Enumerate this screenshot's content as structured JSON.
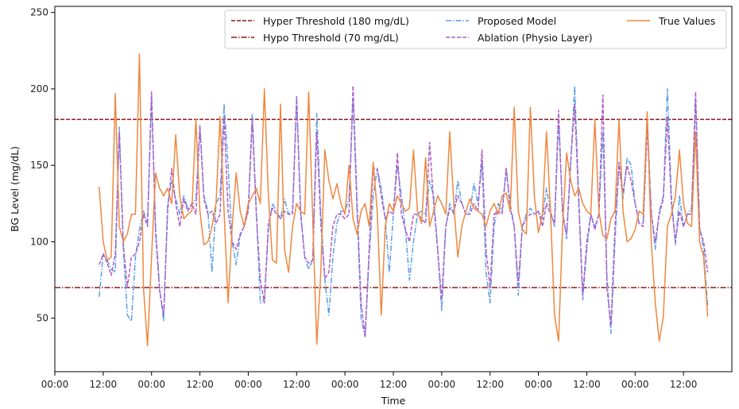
{
  "chart_data": {
    "type": "line",
    "title": "",
    "xlabel": "Time",
    "ylabel": "BG Level (mg/dL)",
    "ylim": [
      15,
      254
    ],
    "yticks": [
      50,
      100,
      150,
      200,
      250
    ],
    "xticks": [
      "00:00",
      "12:00",
      "00:00",
      "12:00",
      "00:00",
      "12:00",
      "00:00",
      "12:00",
      "00:00",
      "12:00",
      "00:00",
      "12:00",
      "00:00",
      "12:00"
    ],
    "grid": false,
    "legend_position": "top-right",
    "thresholds": [
      {
        "name": "Hyper Threshold (180 mg/dL)",
        "value": 180,
        "color": "#8b1a1a",
        "style": "dashed"
      },
      {
        "name": "Hypo Threshold (70 mg/dL)",
        "value": 70,
        "color": "#8b1a1a",
        "style": "dashdot"
      }
    ],
    "x_hours": [
      11,
      12,
      13,
      14,
      15,
      16,
      17,
      18,
      19,
      20,
      21,
      22,
      23,
      24,
      25,
      26,
      27,
      28,
      29,
      30,
      31,
      32,
      33,
      34,
      35,
      36,
      37,
      38,
      39,
      40,
      41,
      42,
      43,
      44,
      45,
      46,
      47,
      48,
      49,
      50,
      51,
      52,
      53,
      54,
      55,
      56,
      57,
      58,
      59,
      60,
      61,
      62,
      63,
      64,
      65,
      66,
      67,
      68,
      69,
      70,
      71,
      72,
      73,
      74,
      75,
      76,
      77,
      78,
      79,
      80,
      81,
      82,
      83,
      84,
      85,
      86,
      87,
      88,
      89,
      90,
      91,
      92,
      93,
      94,
      95,
      96,
      97,
      98,
      99,
      100,
      101,
      102,
      103,
      104,
      105,
      106,
      107,
      108,
      109,
      110,
      111,
      112,
      113,
      114,
      115,
      116,
      117,
      118,
      119,
      120,
      121,
      122,
      123,
      124,
      125,
      126,
      127,
      128,
      129,
      130,
      131,
      132,
      133,
      134,
      135,
      136,
      137,
      138,
      139,
      140,
      141,
      142,
      143,
      144,
      145,
      146,
      147,
      148,
      149,
      150,
      151,
      152,
      153,
      154,
      155,
      156,
      157,
      158,
      159,
      160,
      161,
      162
    ],
    "series": [
      {
        "name": "Proposed Model",
        "color": "#5b9ee8",
        "style": "dashdot",
        "values": [
          64,
          92,
          88,
          82,
          80,
          175,
          95,
          52,
          48,
          90,
          108,
          120,
          112,
          195,
          110,
          70,
          48,
          125,
          140,
          128,
          118,
          130,
          122,
          124,
          128,
          175,
          130,
          120,
          80,
          125,
          130,
          190,
          150,
          100,
          85,
          104,
          110,
          122,
          184,
          120,
          60,
          62,
          108,
          125,
          120,
          115,
          128,
          118,
          120,
          194,
          120,
          90,
          82,
          88,
          184,
          118,
          75,
          52,
          90,
          112,
          120,
          120,
          128,
          194,
          120,
          50,
          38,
          90,
          130,
          148,
          135,
          115,
          80,
          118,
          150,
          130,
          108,
          75,
          100,
          118,
          120,
          118,
          140,
          130,
          95,
          55,
          110,
          125,
          118,
          140,
          125,
          118,
          120,
          138,
          125,
          152,
          80,
          60,
          110,
          125,
          120,
          148,
          125,
          110,
          65,
          110,
          118,
          122,
          118,
          120,
          115,
          135,
          120,
          110,
          180,
          120,
          102,
          150,
          202,
          130,
          62,
          95,
          118,
          110,
          118,
          172,
          78,
          40,
          100,
          150,
          128,
          155,
          150,
          125,
          112,
          112,
          182,
          120,
          95,
          120,
          130,
          200,
          130,
          98,
          130,
          110,
          118,
          122,
          192,
          110,
          95,
          58
        ]
      },
      {
        "name": "Ablation (Physio Layer)",
        "color": "#b05cc8",
        "style": "dashed",
        "values": [
          85,
          92,
          86,
          78,
          92,
          172,
          98,
          70,
          90,
          92,
          100,
          118,
          110,
          198,
          105,
          68,
          52,
          120,
          148,
          125,
          110,
          128,
          120,
          125,
          118,
          176,
          128,
          118,
          120,
          112,
          118,
          182,
          120,
          100,
          95,
          105,
          110,
          120,
          180,
          118,
          75,
          60,
          112,
          122,
          118,
          115,
          120,
          118,
          118,
          195,
          118,
          90,
          86,
          88,
          172,
          112,
          76,
          80,
          110,
          118,
          118,
          115,
          118,
          202,
          125,
          60,
          38,
          95,
          148,
          148,
          130,
          115,
          120,
          118,
          158,
          118,
          108,
          100,
          118,
          118,
          115,
          112,
          165,
          125,
          95,
          62,
          110,
          122,
          120,
          130,
          125,
          118,
          118,
          125,
          120,
          160,
          95,
          70,
          118,
          120,
          118,
          148,
          122,
          110,
          72,
          110,
          115,
          118,
          118,
          120,
          110,
          125,
          118,
          112,
          186,
          118,
          105,
          152,
          190,
          125,
          65,
          100,
          118,
          108,
          118,
          196,
          70,
          45,
          110,
          152,
          132,
          150,
          140,
          125,
          112,
          110,
          175,
          118,
          100,
          118,
          128,
          182,
          125,
          100,
          120,
          110,
          118,
          118,
          198,
          108,
          100,
          80
        ]
      },
      {
        "name": "True Values",
        "color": "#f0873f",
        "style": "solid",
        "values": [
          136,
          100,
          88,
          90,
          197,
          110,
          100,
          105,
          118,
          118,
          223,
          70,
          32,
          90,
          145,
          135,
          130,
          135,
          125,
          170,
          130,
          115,
          118,
          120,
          180,
          120,
          98,
          100,
          110,
          125,
          182,
          120,
          60,
          110,
          145,
          120,
          110,
          125,
          130,
          135,
          125,
          200,
          130,
          88,
          86,
          190,
          95,
          80,
          110,
          125,
          120,
          118,
          198,
          115,
          33,
          80,
          160,
          140,
          128,
          138,
          125,
          118,
          150,
          115,
          105,
          120,
          125,
          110,
          152,
          120,
          52,
          110,
          125,
          120,
          130,
          125,
          120,
          122,
          160,
          120,
          112,
          155,
          110,
          120,
          130,
          125,
          118,
          172,
          125,
          90,
          110,
          120,
          128,
          122,
          120,
          118,
          110,
          120,
          125,
          118,
          130,
          132,
          120,
          188,
          120,
          108,
          105,
          188,
          130,
          106,
          118,
          172,
          120,
          52,
          35,
          110,
          158,
          140,
          130,
          135,
          125,
          120,
          118,
          180,
          120,
          104,
          102,
          115,
          120,
          180,
          120,
          100,
          102,
          108,
          120,
          118,
          185,
          100,
          60,
          35,
          51,
          110,
          118,
          130,
          160,
          125,
          112,
          110,
          172,
          100,
          90,
          51
        ]
      }
    ]
  },
  "legend": {
    "hyper": "Hyper Threshold (180 mg/dL)",
    "hypo": "Hypo Threshold (70 mg/dL)",
    "proposed": "Proposed Model",
    "ablation": "Ablation (Physio Layer)",
    "true": "True Values"
  }
}
